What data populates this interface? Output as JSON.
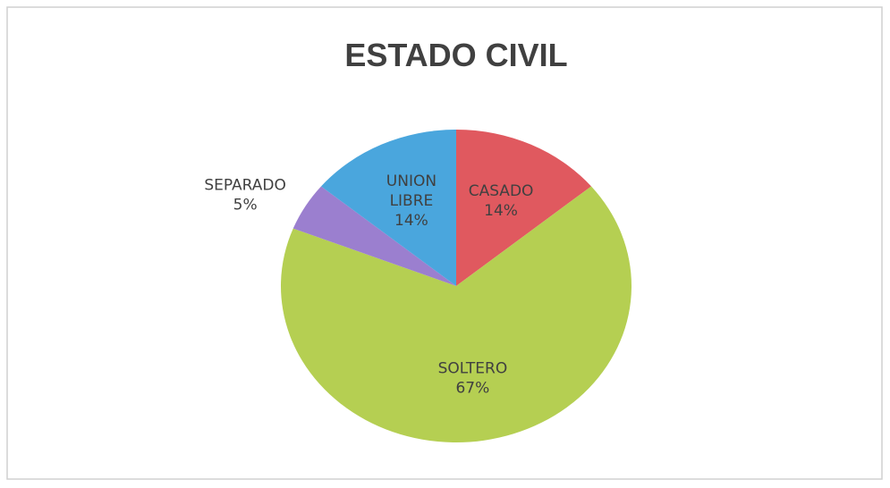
{
  "chart_data": {
    "type": "pie",
    "title": "ESTADO CIVIL",
    "categories": [
      "CASADO",
      "SOLTERO",
      "SEPARADO",
      "UNION LIBRE"
    ],
    "values": [
      14,
      67,
      5,
      14
    ],
    "value_labels": [
      "14%",
      "67%",
      "5%",
      "14%"
    ],
    "colors": [
      "#e0595f",
      "#b5cf52",
      "#9b7fcf",
      "#4aa6dd"
    ]
  }
}
